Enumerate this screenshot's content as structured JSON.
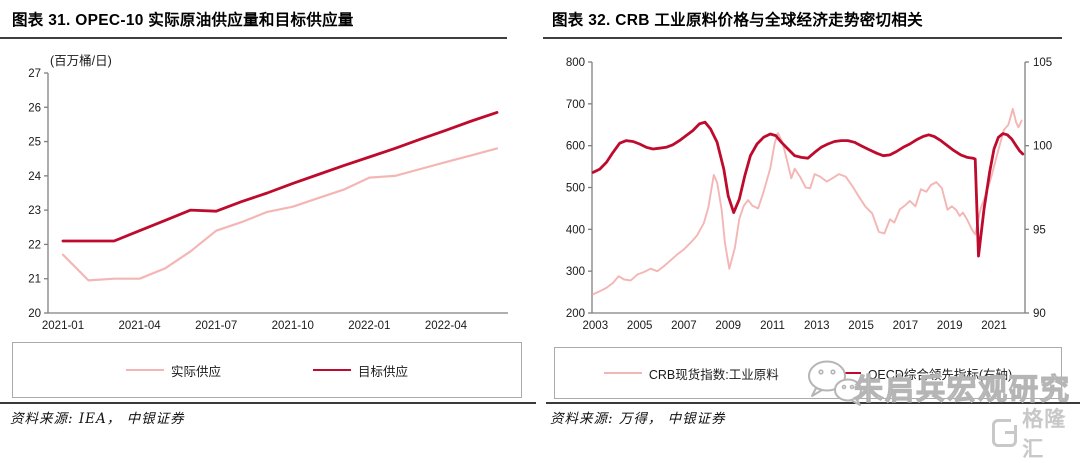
{
  "colors": {
    "dark_red": "#BE0A2D",
    "pink": "#F4B6B4",
    "axis": "#7f7f7f",
    "tick_text": "#1a1a1a",
    "rule_dark": "#3f3f3f",
    "legend_border": "#ababab",
    "watermark_gray": "#b5b5b5",
    "logo_gray": "#c8c8c8"
  },
  "figures": [
    {
      "source": "资料来源: IEA， 中银证券"
    },
    {
      "source": "资料来源: 万得， 中银证券"
    }
  ],
  "watermark": {
    "icon": "wechat-icon",
    "text": "朱启兵宏观研究"
  },
  "logo": {
    "icon": "gelonghui-icon",
    "text": "格隆汇"
  },
  "chart_data": [
    {
      "type": "line",
      "title": "图表 31. OPEC-10 实际原油供应量和目标供应量",
      "xlabel": "",
      "ylabel": "(百万桶/日)",
      "ylim": [
        20,
        27
      ],
      "y_ticks": [
        20,
        21,
        22,
        23,
        24,
        25,
        26,
        27
      ],
      "grid": false,
      "legend_position": "bottom-box",
      "categories": [
        "2021-01",
        "2021-02",
        "2021-03",
        "2021-04",
        "2021-05",
        "2021-06",
        "2021-07",
        "2021-08",
        "2021-09",
        "2021-10",
        "2021-11",
        "2021-12",
        "2022-01",
        "2022-02",
        "2022-03",
        "2022-04",
        "2022-05",
        "2022-06"
      ],
      "x_tick_labels": [
        "2021-01",
        "2021-04",
        "2021-07",
        "2021-10",
        "2022-01",
        "2022-04"
      ],
      "x_tick_indices": [
        0,
        3,
        6,
        9,
        12,
        15
      ],
      "series": [
        {
          "name": "实际供应",
          "color": "pink",
          "width": 2.2,
          "values": [
            21.7,
            20.95,
            21.0,
            21.0,
            21.3,
            21.8,
            22.4,
            22.65,
            22.95,
            23.1,
            23.35,
            23.6,
            23.95,
            24.0,
            24.2,
            24.4,
            24.6,
            24.8
          ]
        },
        {
          "name": "目标供应",
          "color": "dark_red",
          "width": 2.8,
          "values": [
            22.1,
            22.1,
            22.1,
            22.4,
            22.7,
            23.0,
            22.97,
            23.25,
            23.5,
            23.78,
            24.04,
            24.3,
            24.55,
            24.8,
            25.07,
            25.33,
            25.6,
            25.85
          ]
        }
      ]
    },
    {
      "type": "line",
      "title": "图表 32. CRB 工业原料价格与全球经济走势密切相关",
      "xlabel": "",
      "ylabel_left": "",
      "ylim_left": [
        200,
        800
      ],
      "y_ticks_left": [
        200,
        300,
        400,
        500,
        600,
        700,
        800
      ],
      "ylim_right": [
        90,
        105
      ],
      "y_ticks_right": [
        90,
        95,
        100,
        105
      ],
      "xlim": [
        2002.85,
        2022.4
      ],
      "x_ticks": [
        2003,
        2005,
        2007,
        2009,
        2011,
        2013,
        2015,
        2017,
        2019,
        2021
      ],
      "grid": false,
      "legend_position": "bottom-box",
      "series": [
        {
          "name": "CRB现货指数:工业原料",
          "axis": "left",
          "color": "pink",
          "width": 1.9,
          "points": [
            [
              2002.9,
              245
            ],
            [
              2003.2,
              252
            ],
            [
              2003.5,
              260
            ],
            [
              2003.8,
              272
            ],
            [
              2004.05,
              288
            ],
            [
              2004.3,
              280
            ],
            [
              2004.6,
              278
            ],
            [
              2004.9,
              292
            ],
            [
              2005.2,
              298
            ],
            [
              2005.5,
              306
            ],
            [
              2005.8,
              300
            ],
            [
              2006.1,
              312
            ],
            [
              2006.4,
              326
            ],
            [
              2006.7,
              340
            ],
            [
              2007.0,
              352
            ],
            [
              2007.3,
              368
            ],
            [
              2007.6,
              386
            ],
            [
              2007.9,
              415
            ],
            [
              2008.1,
              452
            ],
            [
              2008.35,
              530
            ],
            [
              2008.5,
              512
            ],
            [
              2008.7,
              448
            ],
            [
              2008.85,
              368
            ],
            [
              2009.05,
              306
            ],
            [
              2009.3,
              356
            ],
            [
              2009.5,
              425
            ],
            [
              2009.7,
              456
            ],
            [
              2009.9,
              470
            ],
            [
              2010.1,
              456
            ],
            [
              2010.35,
              450
            ],
            [
              2010.6,
              490
            ],
            [
              2010.9,
              546
            ],
            [
              2011.1,
              606
            ],
            [
              2011.25,
              630
            ],
            [
              2011.45,
              608
            ],
            [
              2011.65,
              566
            ],
            [
              2011.85,
              522
            ],
            [
              2012.0,
              545
            ],
            [
              2012.25,
              525
            ],
            [
              2012.5,
              500
            ],
            [
              2012.7,
              498
            ],
            [
              2012.9,
              532
            ],
            [
              2013.15,
              526
            ],
            [
              2013.45,
              514
            ],
            [
              2013.7,
              522
            ],
            [
              2014.0,
              532
            ],
            [
              2014.3,
              526
            ],
            [
              2014.6,
              504
            ],
            [
              2014.9,
              478
            ],
            [
              2015.2,
              454
            ],
            [
              2015.5,
              438
            ],
            [
              2015.8,
              394
            ],
            [
              2016.05,
              390
            ],
            [
              2016.3,
              424
            ],
            [
              2016.5,
              416
            ],
            [
              2016.75,
              448
            ],
            [
              2017.0,
              458
            ],
            [
              2017.2,
              468
            ],
            [
              2017.45,
              455
            ],
            [
              2017.7,
              496
            ],
            [
              2017.95,
              490
            ],
            [
              2018.15,
              506
            ],
            [
              2018.4,
              513
            ],
            [
              2018.65,
              498
            ],
            [
              2018.9,
              447
            ],
            [
              2019.1,
              455
            ],
            [
              2019.3,
              446
            ],
            [
              2019.45,
              432
            ],
            [
              2019.6,
              440
            ],
            [
              2019.8,
              422
            ],
            [
              2020.0,
              400
            ],
            [
              2020.15,
              388
            ],
            [
              2020.4,
              450
            ],
            [
              2020.6,
              478
            ],
            [
              2020.85,
              520
            ],
            [
              2021.05,
              560
            ],
            [
              2021.25,
              600
            ],
            [
              2021.45,
              638
            ],
            [
              2021.65,
              650
            ],
            [
              2021.85,
              688
            ],
            [
              2022.0,
              656
            ],
            [
              2022.1,
              644
            ],
            [
              2022.25,
              660
            ]
          ]
        },
        {
          "name": "OECD综合领先指标(右轴)",
          "axis": "right",
          "color": "dark_red",
          "width": 2.8,
          "points": [
            [
              2002.9,
              98.4
            ],
            [
              2003.2,
              98.6
            ],
            [
              2003.5,
              99.0
            ],
            [
              2003.8,
              99.6
            ],
            [
              2004.1,
              100.15
            ],
            [
              2004.4,
              100.3
            ],
            [
              2004.7,
              100.25
            ],
            [
              2005.0,
              100.1
            ],
            [
              2005.3,
              99.9
            ],
            [
              2005.6,
              99.8
            ],
            [
              2005.9,
              99.85
            ],
            [
              2006.2,
              99.9
            ],
            [
              2006.5,
              100.05
            ],
            [
              2006.8,
              100.3
            ],
            [
              2007.1,
              100.6
            ],
            [
              2007.4,
              100.9
            ],
            [
              2007.7,
              101.3
            ],
            [
              2007.95,
              101.4
            ],
            [
              2008.2,
              101.0
            ],
            [
              2008.5,
              100.2
            ],
            [
              2008.8,
              98.6
            ],
            [
              2009.0,
              97.0
            ],
            [
              2009.25,
              96.0
            ],
            [
              2009.5,
              96.8
            ],
            [
              2009.75,
              98.2
            ],
            [
              2010.0,
              99.4
            ],
            [
              2010.3,
              100.1
            ],
            [
              2010.6,
              100.5
            ],
            [
              2010.9,
              100.7
            ],
            [
              2011.15,
              100.6
            ],
            [
              2011.4,
              100.2
            ],
            [
              2011.7,
              99.8
            ],
            [
              2012.0,
              99.4
            ],
            [
              2012.3,
              99.3
            ],
            [
              2012.6,
              99.25
            ],
            [
              2012.9,
              99.6
            ],
            [
              2013.2,
              99.9
            ],
            [
              2013.5,
              100.1
            ],
            [
              2013.8,
              100.25
            ],
            [
              2014.1,
              100.3
            ],
            [
              2014.4,
              100.3
            ],
            [
              2014.7,
              100.2
            ],
            [
              2015.0,
              100.0
            ],
            [
              2015.3,
              99.8
            ],
            [
              2015.7,
              99.55
            ],
            [
              2016.0,
              99.4
            ],
            [
              2016.3,
              99.45
            ],
            [
              2016.6,
              99.65
            ],
            [
              2016.9,
              99.9
            ],
            [
              2017.2,
              100.1
            ],
            [
              2017.5,
              100.35
            ],
            [
              2017.8,
              100.55
            ],
            [
              2018.05,
              100.65
            ],
            [
              2018.3,
              100.55
            ],
            [
              2018.6,
              100.3
            ],
            [
              2018.9,
              100.0
            ],
            [
              2019.2,
              99.7
            ],
            [
              2019.5,
              99.45
            ],
            [
              2019.8,
              99.3
            ],
            [
              2020.05,
              99.25
            ],
            [
              2020.15,
              99.2
            ],
            [
              2020.3,
              93.4
            ],
            [
              2020.55,
              96.2
            ],
            [
              2020.8,
              98.4
            ],
            [
              2021.0,
              99.8
            ],
            [
              2021.2,
              100.5
            ],
            [
              2021.4,
              100.72
            ],
            [
              2021.6,
              100.65
            ],
            [
              2021.8,
              100.4
            ],
            [
              2022.0,
              100.0
            ],
            [
              2022.15,
              99.7
            ],
            [
              2022.3,
              99.5
            ]
          ]
        }
      ]
    }
  ]
}
